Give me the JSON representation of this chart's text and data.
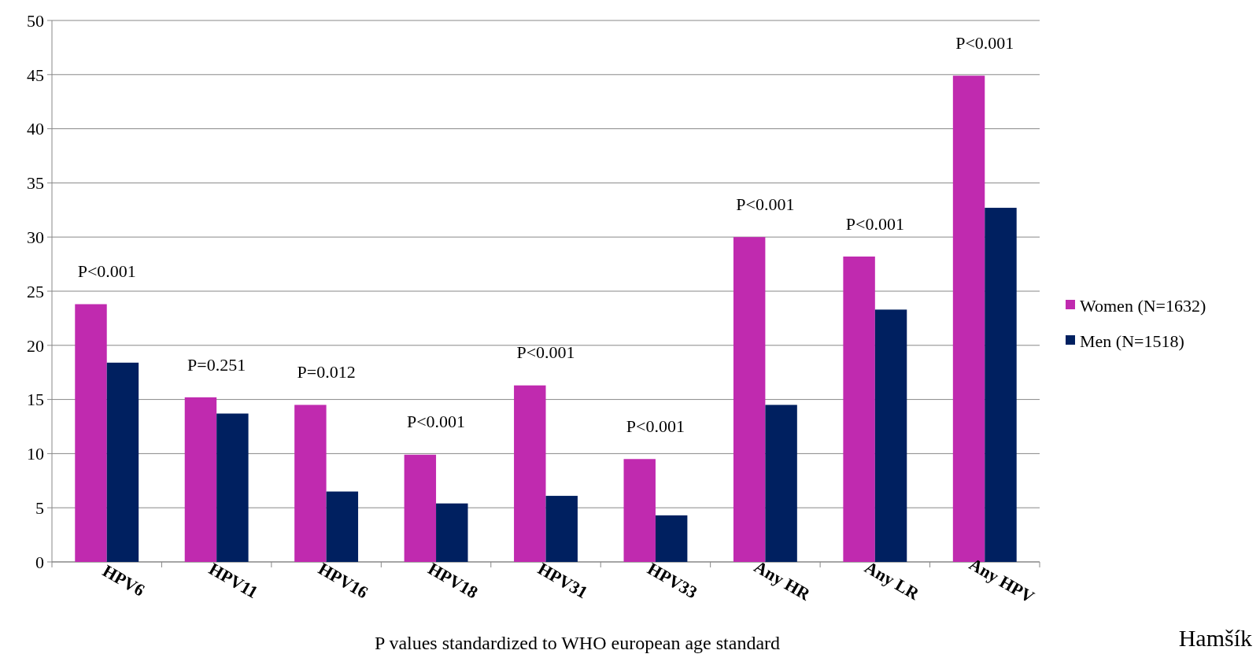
{
  "chart_data": {
    "type": "bar",
    "xlabel": "P values standardized to WHO european age standard",
    "categories": [
      "HPV6",
      "HPV11",
      "HPV16",
      "HPV18",
      "HPV31",
      "HPV33",
      "Any HR",
      "Any LR",
      "Any HPV"
    ],
    "series": [
      {
        "name": "Women (N=1632)",
        "color": "#c02aaf",
        "values": [
          23.8,
          15.2,
          14.5,
          9.9,
          16.3,
          9.5,
          30.0,
          28.2,
          44.9
        ]
      },
      {
        "name": "Men (N=1518)",
        "color": "#002060",
        "values": [
          18.4,
          13.7,
          6.5,
          5.4,
          6.1,
          4.3,
          14.5,
          23.3,
          32.7
        ]
      }
    ],
    "ylim": [
      0,
      50
    ],
    "yticks": [
      0,
      5,
      10,
      15,
      20,
      25,
      30,
      35,
      40,
      45,
      50
    ],
    "grid": "y",
    "legend": "right",
    "annotations": [
      "P<0.001",
      "P=0.251",
      "P=0.012",
      "P<0.001",
      "P<0.001",
      "P<0.001",
      "P<0.001",
      "P<0.001",
      "P<0.001",
      "Hamšík"
    ]
  }
}
